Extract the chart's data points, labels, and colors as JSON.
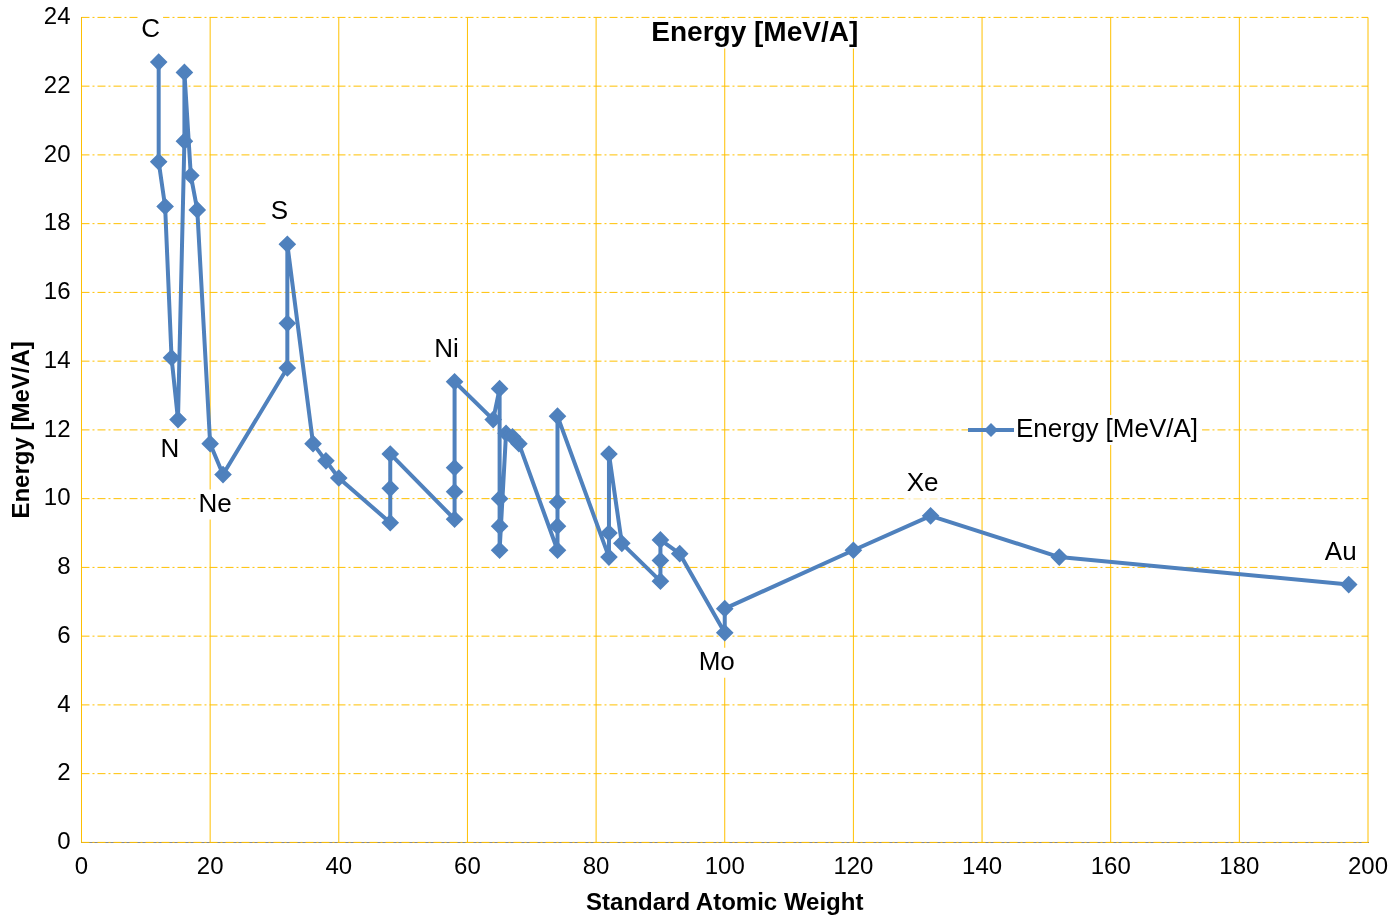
{
  "chart_data": {
    "type": "line",
    "title": "Energy [MeV/A]",
    "xlabel": "Standard Atomic Weight",
    "ylabel": "Energy [MeV/A]",
    "xlim": [
      0,
      200
    ],
    "xticks": [
      0,
      20,
      40,
      60,
      80,
      100,
      120,
      140,
      160,
      180,
      200
    ],
    "ylim": [
      0,
      24
    ],
    "yticks": [
      0,
      2,
      4,
      6,
      8,
      10,
      12,
      14,
      16,
      18,
      20,
      22,
      24
    ],
    "grid": true,
    "legend": "right",
    "marker": "diamond",
    "line_style": "solid",
    "series": [
      {
        "name": "Energy [MeV/A]",
        "color": "#4f81bd",
        "x": [
          12,
          12,
          13,
          14,
          15,
          16,
          16,
          17,
          18,
          20,
          22,
          32,
          32,
          32,
          36,
          38,
          40,
          48,
          48,
          48,
          58,
          58,
          58,
          58,
          64,
          65,
          65,
          65,
          65,
          66,
          67,
          68,
          74,
          74,
          74,
          74,
          82,
          82,
          82,
          84,
          90,
          90,
          90,
          93,
          100,
          100,
          120,
          132,
          152,
          197
        ],
        "values": [
          22.7,
          19.8,
          18.5,
          14.1,
          12.3,
          20.4,
          22.4,
          19.4,
          18.4,
          11.6,
          10.7,
          13.8,
          15.1,
          17.4,
          11.6,
          11.1,
          10.6,
          9.3,
          10.3,
          11.3,
          9.4,
          10.2,
          10.9,
          13.4,
          12.3,
          13.2,
          10.0,
          9.2,
          8.5,
          11.9,
          11.8,
          11.6,
          8.5,
          9.2,
          9.9,
          12.4,
          8.3,
          9.0,
          11.3,
          8.7,
          7.6,
          8.2,
          8.8,
          8.4,
          6.1,
          6.8,
          8.5,
          9.5,
          8.3,
          7.5
        ]
      }
    ],
    "annotations": [
      {
        "text": "C",
        "x": 12,
        "y": 22.7
      },
      {
        "text": "N",
        "x": 15,
        "y": 12.3
      },
      {
        "text": "Ne",
        "x": 22,
        "y": 10.7
      },
      {
        "text": "S",
        "x": 32,
        "y": 17.4
      },
      {
        "text": "Ni",
        "x": 58,
        "y": 13.4
      },
      {
        "text": "Mo",
        "x": 100,
        "y": 6.1
      },
      {
        "text": "Xe",
        "x": 132,
        "y": 9.5
      },
      {
        "text": "Au",
        "x": 197,
        "y": 7.5
      }
    ]
  }
}
